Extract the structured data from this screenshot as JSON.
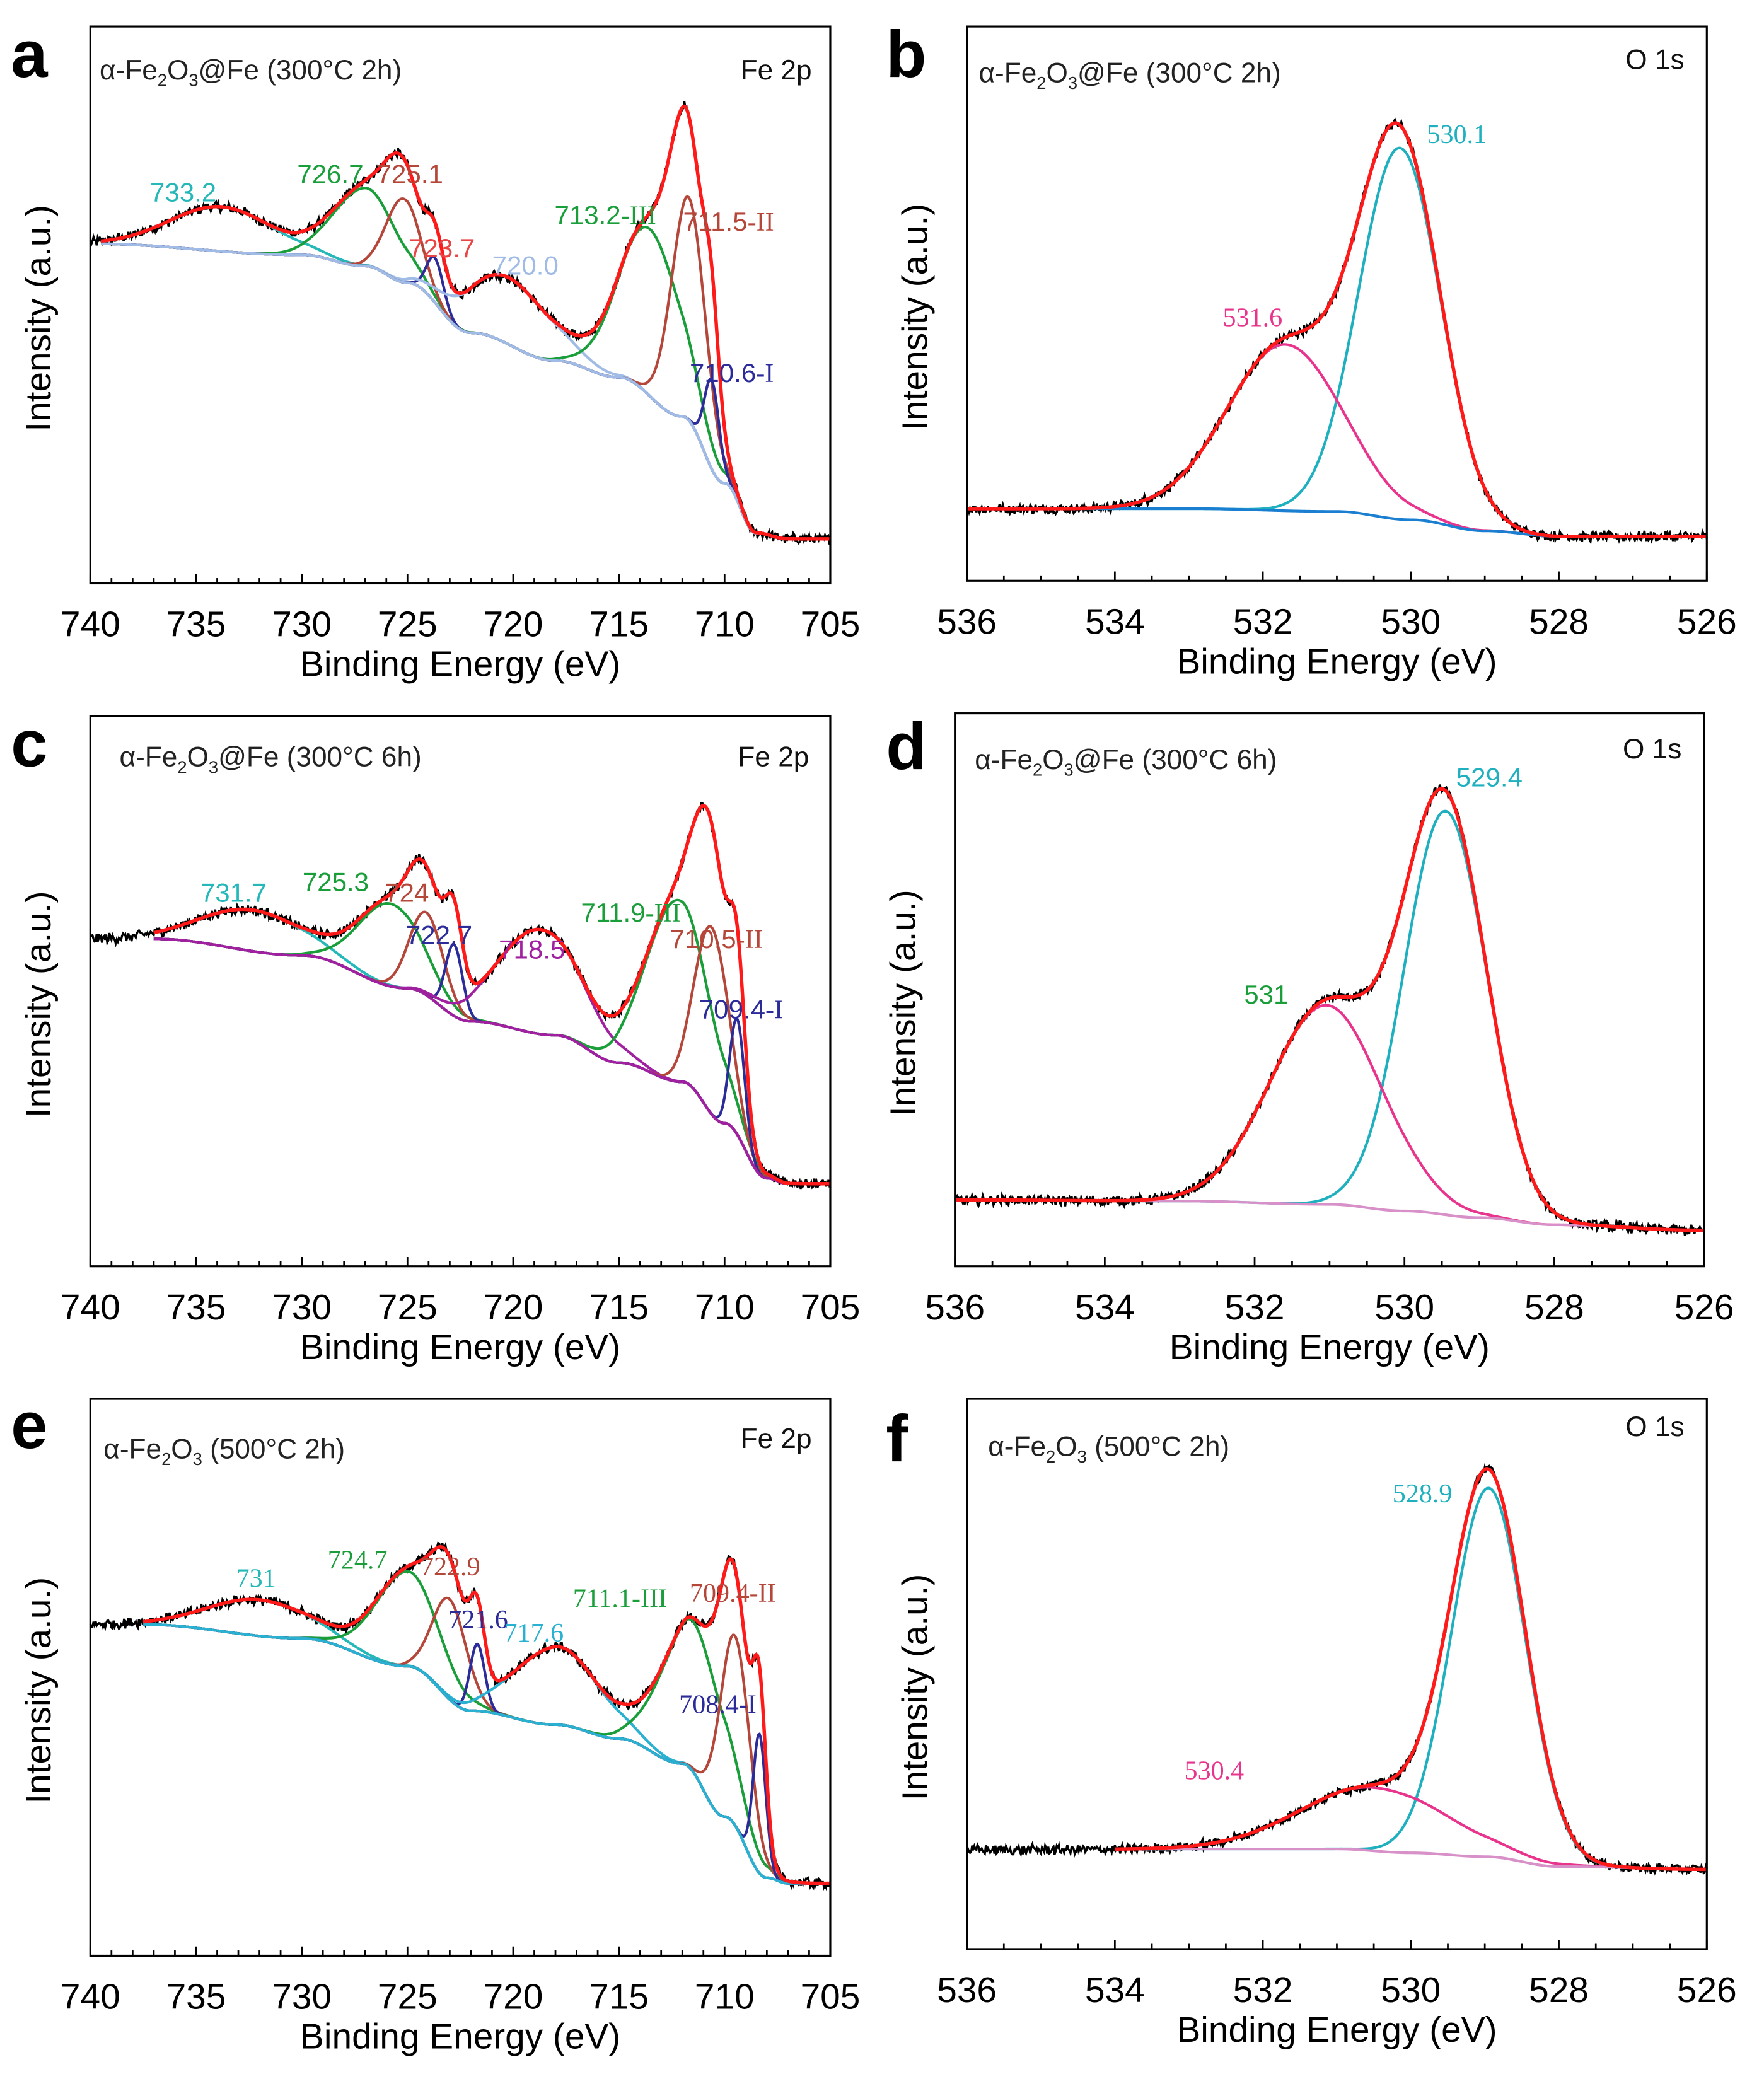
{
  "chart_data": [
    {
      "panel": "a",
      "type": "line",
      "title": "α-Fe2O3@Fe (300°C 2h)",
      "core_level": "Fe 2p",
      "xlabel": "Binding Energy (eV)",
      "ylabel": "Intensity (a.u.)",
      "xlim": [
        740,
        705
      ],
      "xticks": [
        740,
        735,
        730,
        725,
        720,
        715,
        710,
        705
      ],
      "ylim": [
        0,
        100
      ],
      "raw_range": [
        740,
        705
      ],
      "component_range": [
        739.5,
        705
      ],
      "fit_color": "#ff1a1a",
      "raw_color": "#000000",
      "background": {
        "color": "#9fbbe6",
        "points": [
          [
            740,
            61
          ],
          [
            730,
            59
          ],
          [
            727,
            57
          ],
          [
            725,
            54
          ],
          [
            722,
            45
          ],
          [
            718,
            40
          ],
          [
            715,
            37
          ],
          [
            712,
            30
          ],
          [
            710,
            18
          ],
          [
            708.5,
            9
          ],
          [
            707,
            8
          ],
          [
            705,
            8
          ]
        ]
      },
      "peaks": [
        {
          "label": "733.2",
          "center": 733.8,
          "height": 8,
          "sigma": 2.4,
          "color": "#26b8b8"
        },
        {
          "label": "726.7",
          "center": 727.0,
          "height": 14,
          "sigma": 1.5,
          "color": "#1a9e3a"
        },
        {
          "label": "725.1",
          "center": 725.2,
          "height": 15,
          "sigma": 0.8,
          "color": "#b5473a"
        },
        {
          "label": "723.7",
          "center": 723.7,
          "height": 8,
          "sigma": 0.4,
          "color": "#2b2b9a",
          "label_color": "#e84545"
        },
        {
          "label": "720.0",
          "center": 720.2,
          "height": 12,
          "sigma": 2.0,
          "color": "#9fbbe6"
        },
        {
          "label": "713.2-III",
          "center": 713.5,
          "height": 30,
          "sigma": 1.5,
          "color": "#1a9e3a"
        },
        {
          "label": "711.5-II",
          "center": 711.7,
          "height": 40,
          "sigma": 0.8,
          "color": "#b5473a"
        },
        {
          "label": "710.6-I",
          "center": 710.6,
          "height": 16,
          "sigma": 0.35,
          "color": "#2b2b9a"
        }
      ]
    },
    {
      "panel": "b",
      "type": "line",
      "title": "α-Fe2O3@Fe (300°C 2h)",
      "core_level": "O 1s",
      "xlabel": "Binding Energy (eV)",
      "ylabel": "Intensity (a.u.)",
      "xlim": [
        536,
        526
      ],
      "xticks": [
        536,
        534,
        532,
        530,
        528,
        526
      ],
      "ylim": [
        0,
        100
      ],
      "raw_range": [
        536,
        526
      ],
      "component_range": [
        536,
        526
      ],
      "fit_color": "#ff1a1a",
      "raw_color": "#000000",
      "background": {
        "color": "#1a7fd0",
        "points": [
          [
            536,
            13
          ],
          [
            533,
            13
          ],
          [
            531,
            12.5
          ],
          [
            530,
            11
          ],
          [
            529,
            9
          ],
          [
            528,
            8
          ],
          [
            526,
            8
          ]
        ]
      },
      "peaks": [
        {
          "label": "530.1",
          "center": 530.15,
          "height": 67,
          "sigma": 0.55,
          "color": "#1fb0c0"
        },
        {
          "label": "531.6",
          "center": 531.7,
          "height": 30,
          "sigma": 0.78,
          "color": "#e8348c"
        }
      ]
    },
    {
      "panel": "c",
      "type": "line",
      "title": "α-Fe2O3@Fe (300°C 6h)",
      "core_level": "Fe 2p",
      "xlabel": "Binding Energy (eV)",
      "ylabel": "Intensity (a.u.)",
      "xlim": [
        740,
        705
      ],
      "xticks": [
        740,
        735,
        730,
        725,
        720,
        715,
        710,
        705
      ],
      "ylim": [
        0,
        100
      ],
      "raw_range": [
        740,
        705
      ],
      "component_range": [
        737,
        705
      ],
      "fit_color": "#ff1a1a",
      "raw_color": "#000000",
      "background": {
        "color": "#a020a0",
        "points": [
          [
            737,
            59.5
          ],
          [
            730,
            56.5
          ],
          [
            725,
            50.5
          ],
          [
            722,
            44.5
          ],
          [
            718,
            42
          ],
          [
            715,
            37
          ],
          [
            712,
            33.5
          ],
          [
            710,
            26
          ],
          [
            708,
            16
          ],
          [
            707,
            15
          ],
          [
            705,
            15
          ]
        ]
      },
      "peaks": [
        {
          "label": "731.7",
          "center": 732.3,
          "height": 7.5,
          "sigma": 2.4,
          "color": "#26b8b8"
        },
        {
          "label": "725.3",
          "center": 725.8,
          "height": 15,
          "sigma": 1.5,
          "color": "#1a9e3a"
        },
        {
          "label": "724",
          "center": 724.1,
          "height": 15,
          "sigma": 0.8,
          "color": "#b5473a"
        },
        {
          "label": "722.7",
          "center": 722.8,
          "height": 13,
          "sigma": 0.4,
          "color": "#2b2b9a"
        },
        {
          "label": "718.5",
          "center": 718.7,
          "height": 19,
          "sigma": 2.0,
          "color": "#a020a0"
        },
        {
          "label": "711.9-III",
          "center": 712.2,
          "height": 33,
          "sigma": 1.5,
          "color": "#1a9e3a"
        },
        {
          "label": "710.5-II",
          "center": 710.6,
          "height": 34,
          "sigma": 0.8,
          "color": "#b5473a"
        },
        {
          "label": "709.4-I",
          "center": 709.4,
          "height": 21,
          "sigma": 0.35,
          "color": "#2b2b9a"
        }
      ]
    },
    {
      "panel": "d",
      "type": "line",
      "title": "α-Fe2O3@Fe (300°C 6h)",
      "core_level": "O 1s",
      "xlabel": "Binding Energy (eV)",
      "ylabel": "Intensity (a.u.)",
      "xlim": [
        536,
        526
      ],
      "xticks": [
        536,
        534,
        532,
        530,
        528,
        526
      ],
      "ylim": [
        0,
        100
      ],
      "raw_range": [
        536,
        526
      ],
      "component_range": [
        536,
        526
      ],
      "fit_color": "#ff1a1a",
      "raw_color": "#000000",
      "background": {
        "color": "#d890c8",
        "points": [
          [
            536,
            12
          ],
          [
            533,
            11.8
          ],
          [
            531,
            11.2
          ],
          [
            530,
            10
          ],
          [
            529,
            8.8
          ],
          [
            528,
            7.5
          ],
          [
            526,
            6.5
          ]
        ]
      },
      "peaks": [
        {
          "label": "529.4",
          "center": 529.45,
          "height": 73,
          "sigma": 0.55,
          "color": "#1fb0c0"
        },
        {
          "label": "531",
          "center": 531.05,
          "height": 36,
          "sigma": 0.75,
          "color": "#e8348c",
          "label_color": "#1a9e3a"
        }
      ]
    },
    {
      "panel": "e",
      "type": "line",
      "title": "α-Fe2O3 (500°C 2h)",
      "core_level": "Fe 2p",
      "xlabel": "Binding Energy (eV)",
      "ylabel": "Intensity (a.u.)",
      "xlim": [
        740,
        705
      ],
      "xticks": [
        740,
        735,
        730,
        725,
        720,
        715,
        710,
        705
      ],
      "ylim": [
        0,
        100
      ],
      "raw_range": [
        740,
        705
      ],
      "component_range": [
        737.5,
        705
      ],
      "fit_color": "#ff1a1a",
      "raw_color": "#000000",
      "background": {
        "color": "#2ab0d0",
        "points": [
          [
            737.5,
            59.5
          ],
          [
            730,
            57
          ],
          [
            725,
            52
          ],
          [
            722,
            44
          ],
          [
            718,
            41.5
          ],
          [
            715,
            39
          ],
          [
            712,
            34.5
          ],
          [
            710,
            25
          ],
          [
            708,
            14
          ],
          [
            707,
            13
          ],
          [
            705,
            13
          ]
        ]
      },
      "peaks": [
        {
          "label": "731",
          "center": 732.0,
          "height": 6.5,
          "sigma": 2.4,
          "color": "#26b8b8"
        },
        {
          "label": "724.7",
          "center": 725.0,
          "height": 17,
          "sigma": 1.5,
          "color": "#1a9e3a"
        },
        {
          "label": "722.9",
          "center": 723.0,
          "height": 18,
          "sigma": 0.8,
          "color": "#b5473a"
        },
        {
          "label": "721.6",
          "center": 721.7,
          "height": 12,
          "sigma": 0.35,
          "color": "#2b2b9a"
        },
        {
          "label": "717.6",
          "center": 717.9,
          "height": 14,
          "sigma": 2.0,
          "color": "#2ab0d0"
        },
        {
          "label": "711.1-III",
          "center": 711.4,
          "height": 27,
          "sigma": 1.5,
          "color": "#1a9e3a"
        },
        {
          "label": "709.4-II",
          "center": 709.5,
          "height": 34,
          "sigma": 0.7,
          "color": "#b5473a"
        },
        {
          "label": "708.4-I",
          "center": 708.35,
          "height": 25,
          "sigma": 0.3,
          "color": "#2b2b9a"
        }
      ]
    },
    {
      "panel": "f",
      "type": "line",
      "title": "α-Fe2O3 (500°C 2h)",
      "core_level": "O 1s",
      "xlabel": "Binding Energy (eV)",
      "ylabel": "Intensity (a.u.)",
      "xlim": [
        536,
        526
      ],
      "xticks": [
        536,
        534,
        532,
        530,
        528,
        526
      ],
      "ylim": [
        0,
        100
      ],
      "raw_range": [
        536,
        526
      ],
      "component_range": [
        534,
        526
      ],
      "fit_color": "#ff1a1a",
      "raw_color": "#000000",
      "background": {
        "color": "#d890c8",
        "points": [
          [
            536,
            18
          ],
          [
            533,
            18.2
          ],
          [
            531,
            18.2
          ],
          [
            530,
            17.5
          ],
          [
            529,
            16.8
          ],
          [
            528,
            15
          ],
          [
            526,
            14.5
          ]
        ]
      },
      "peaks": [
        {
          "label": "528.9",
          "center": 528.95,
          "height": 67,
          "sigma": 0.5,
          "color": "#1fb0c0"
        },
        {
          "label": "530.4",
          "center": 530.5,
          "height": 11.5,
          "sigma": 1.0,
          "color": "#e8348c"
        }
      ]
    }
  ]
}
